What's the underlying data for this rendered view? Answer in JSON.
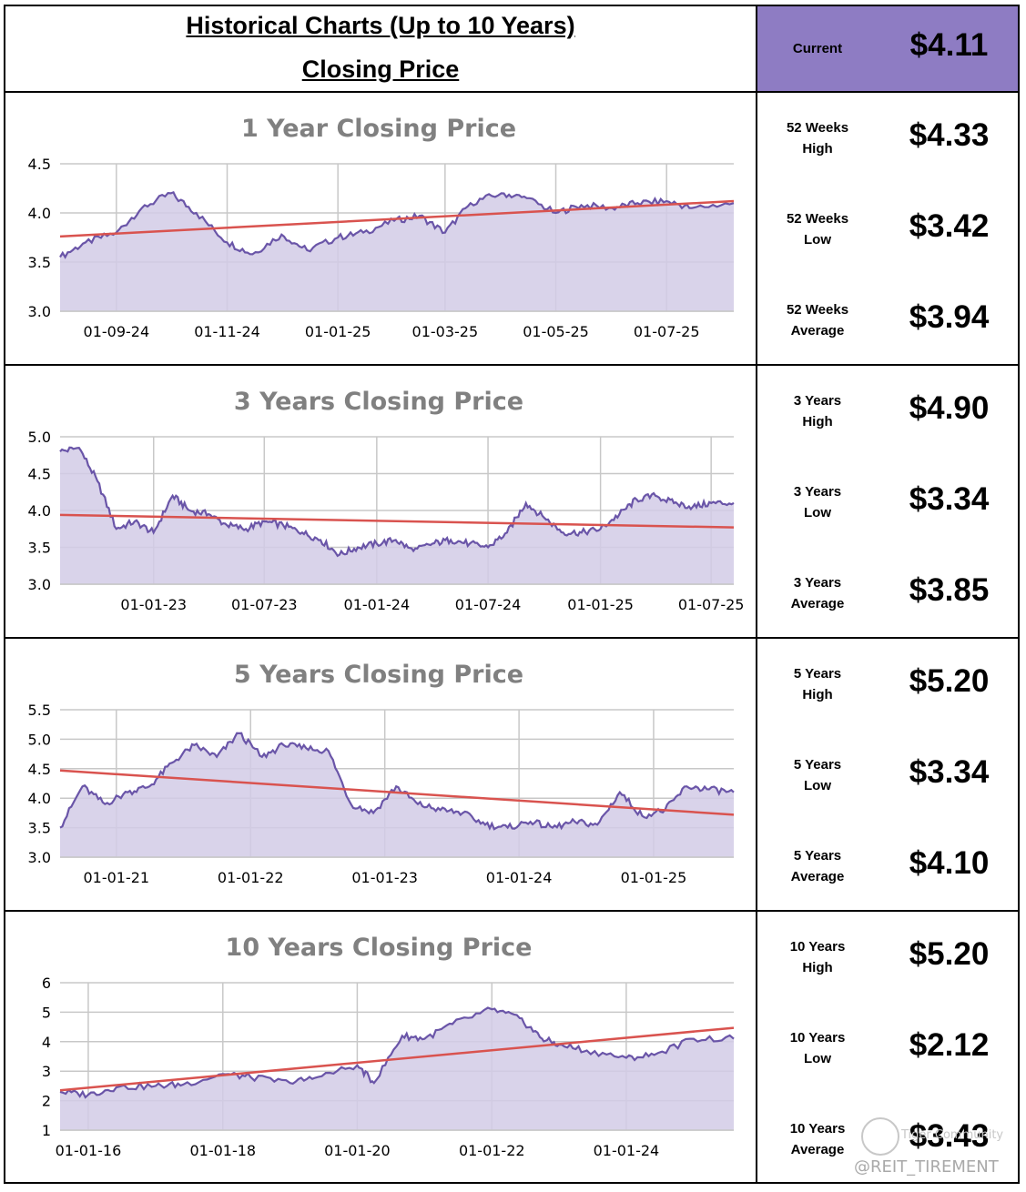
{
  "header": {
    "title_line1": "Historical Charts (Up to 10 Years)",
    "title_line2": "Closing Price",
    "current_label": "Current",
    "current_value": "$4.11",
    "current_bg": "#8e7cc3"
  },
  "stats": [
    {
      "label_line1": "52 Weeks",
      "label_line2": "High",
      "value": "$4.33"
    },
    {
      "label_line1": "52 Weeks",
      "label_line2": "Low",
      "value": "$3.42"
    },
    {
      "label_line1": "52 Weeks",
      "label_line2": "Average",
      "value": "$3.94"
    },
    {
      "label_line1": "3 Years",
      "label_line2": "High",
      "value": "$4.90"
    },
    {
      "label_line1": "3 Years",
      "label_line2": "Low",
      "value": "$3.34"
    },
    {
      "label_line1": "3 Years",
      "label_line2": "Average",
      "value": "$3.85"
    },
    {
      "label_line1": "5 Years",
      "label_line2": "High",
      "value": "$5.20"
    },
    {
      "label_line1": "5 Years",
      "label_line2": "Low",
      "value": "$3.34"
    },
    {
      "label_line1": "5 Years",
      "label_line2": "Average",
      "value": "$4.10"
    },
    {
      "label_line1": "10 Years",
      "label_line2": "High",
      "value": "$5.20"
    },
    {
      "label_line1": "10 Years",
      "label_line2": "Low",
      "value": "$2.12"
    },
    {
      "label_line1": "10 Years",
      "label_line2": "Average",
      "value": "$3.43"
    }
  ],
  "watermark": {
    "handle": "@REIT_TIREMENT",
    "community": "Tiger Community"
  },
  "colors": {
    "price_line": "#6a55a8",
    "fill": "#d2cbe6",
    "trend": "#d9534f",
    "grid": "#c8c8c8"
  },
  "chart_data": [
    {
      "type": "area",
      "title": "1 Year Closing Price",
      "x_range": [
        "2024-08-01",
        "2025-08-07"
      ],
      "xticks": [
        "01-09-24",
        "01-11-24",
        "01-01-25",
        "01-03-25",
        "01-05-25",
        "01-07-25"
      ],
      "xtick_dates": [
        "2024-09-01",
        "2024-11-01",
        "2025-01-01",
        "2025-03-01",
        "2025-05-01",
        "2025-07-01"
      ],
      "ylim": [
        3.0,
        4.5
      ],
      "yticks": [
        "3.0",
        "3.5",
        "4.0",
        "4.5"
      ],
      "series": [
        {
          "x": [
            "2024-08-01",
            "2024-08-15",
            "2024-09-01",
            "2024-09-15",
            "2024-10-01",
            "2024-10-15",
            "2024-11-01",
            "2024-11-15",
            "2024-12-01",
            "2024-12-15",
            "2025-01-01",
            "2025-01-15",
            "2025-02-01",
            "2025-02-15",
            "2025-03-01",
            "2025-03-15",
            "2025-04-01",
            "2025-04-15",
            "2025-05-01",
            "2025-05-15",
            "2025-06-01",
            "2025-06-15",
            "2025-07-01",
            "2025-07-15",
            "2025-08-07"
          ],
          "y": [
            3.55,
            3.7,
            3.8,
            4.05,
            4.2,
            4.0,
            3.7,
            3.58,
            3.78,
            3.62,
            3.75,
            3.8,
            3.92,
            3.97,
            3.8,
            4.1,
            4.2,
            4.15,
            4.0,
            4.08,
            4.05,
            4.1,
            4.12,
            4.05,
            4.1
          ]
        }
      ],
      "trend": {
        "y_start": 3.76,
        "y_end": 4.12
      }
    },
    {
      "type": "area",
      "title": "3 Years Closing Price",
      "x_range": [
        "2022-08-01",
        "2025-08-07"
      ],
      "xticks": [
        "01-01-23",
        "01-07-23",
        "01-01-24",
        "01-07-24",
        "01-01-25",
        "01-07-25"
      ],
      "xtick_dates": [
        "2023-01-01",
        "2023-07-01",
        "2024-01-01",
        "2024-07-01",
        "2025-01-01",
        "2025-07-01"
      ],
      "ylim": [
        3.0,
        5.0
      ],
      "yticks": [
        "3.0",
        "3.5",
        "4.0",
        "4.5",
        "5.0"
      ],
      "series": [
        {
          "x": [
            "2022-08-01",
            "2022-09-01",
            "2022-10-01",
            "2022-11-01",
            "2022-12-01",
            "2023-01-01",
            "2023-02-01",
            "2023-03-01",
            "2023-04-01",
            "2023-05-01",
            "2023-06-01",
            "2023-07-01",
            "2023-08-01",
            "2023-09-01",
            "2023-10-01",
            "2023-11-01",
            "2023-12-01",
            "2024-01-01",
            "2024-02-01",
            "2024-03-01",
            "2024-04-01",
            "2024-05-01",
            "2024-06-01",
            "2024-07-01",
            "2024-08-01",
            "2024-09-01",
            "2024-10-01",
            "2024-11-01",
            "2024-12-01",
            "2025-01-01",
            "2025-02-01",
            "2025-03-01",
            "2025-04-01",
            "2025-05-01",
            "2025-06-01",
            "2025-07-01",
            "2025-08-07"
          ],
          "y": [
            4.8,
            4.85,
            4.4,
            3.75,
            3.85,
            3.7,
            4.2,
            4.0,
            3.95,
            3.8,
            3.75,
            3.85,
            3.8,
            3.7,
            3.6,
            3.4,
            3.5,
            3.55,
            3.6,
            3.45,
            3.55,
            3.6,
            3.55,
            3.5,
            3.7,
            4.1,
            3.9,
            3.7,
            3.7,
            3.75,
            3.95,
            4.15,
            4.2,
            4.1,
            4.05,
            4.1,
            4.1
          ]
        }
      ],
      "trend": {
        "y_start": 3.94,
        "y_end": 3.77
      }
    },
    {
      "type": "area",
      "title": "5 Years Closing Price",
      "x_range": [
        "2020-08-01",
        "2025-08-07"
      ],
      "xticks": [
        "01-01-21",
        "01-01-22",
        "01-01-23",
        "01-01-24",
        "01-01-25"
      ],
      "xtick_dates": [
        "2021-01-01",
        "2022-01-01",
        "2023-01-01",
        "2024-01-01",
        "2025-01-01"
      ],
      "ylim": [
        3.0,
        5.5
      ],
      "yticks": [
        "3.0",
        "3.5",
        "4.0",
        "4.5",
        "5.0",
        "5.5"
      ],
      "series": [
        {
          "x": [
            "2020-08-01",
            "2020-10-01",
            "2020-12-01",
            "2021-02-01",
            "2021-04-01",
            "2021-06-01",
            "2021-08-01",
            "2021-10-01",
            "2021-12-01",
            "2022-02-01",
            "2022-04-01",
            "2022-06-01",
            "2022-08-01",
            "2022-10-01",
            "2022-12-01",
            "2023-02-01",
            "2023-04-01",
            "2023-06-01",
            "2023-08-01",
            "2023-10-01",
            "2023-12-01",
            "2024-02-01",
            "2024-04-01",
            "2024-06-01",
            "2024-08-01",
            "2024-10-01",
            "2024-12-01",
            "2025-02-01",
            "2025-04-01",
            "2025-06-01",
            "2025-08-07"
          ],
          "y": [
            3.5,
            4.2,
            3.9,
            4.1,
            4.2,
            4.6,
            4.9,
            4.7,
            5.1,
            4.7,
            4.9,
            4.85,
            4.8,
            3.9,
            3.75,
            4.2,
            3.9,
            3.8,
            3.75,
            3.55,
            3.5,
            3.6,
            3.5,
            3.6,
            3.55,
            4.1,
            3.7,
            3.8,
            4.2,
            4.15,
            4.1
          ]
        }
      ],
      "trend": {
        "y_start": 4.47,
        "y_end": 3.72
      }
    },
    {
      "type": "area",
      "title": "10 Years Closing Price",
      "x_range": [
        "2015-08-01",
        "2025-08-07"
      ],
      "xticks": [
        "01-01-16",
        "01-01-18",
        "01-01-20",
        "01-01-22",
        "01-01-24"
      ],
      "xtick_dates": [
        "2016-01-01",
        "2018-01-01",
        "2020-01-01",
        "2022-01-01",
        "2024-01-01"
      ],
      "ylim": [
        1,
        6
      ],
      "yticks": [
        "1",
        "2",
        "3",
        "4",
        "5",
        "6"
      ],
      "series": [
        {
          "x": [
            "2015-08-01",
            "2016-01-01",
            "2016-06-01",
            "2017-01-01",
            "2017-06-01",
            "2018-01-01",
            "2018-06-01",
            "2019-01-01",
            "2019-06-01",
            "2020-01-01",
            "2020-04-01",
            "2020-09-01",
            "2021-01-01",
            "2021-06-01",
            "2022-01-01",
            "2022-06-01",
            "2022-10-01",
            "2023-01-01",
            "2023-06-01",
            "2024-01-01",
            "2024-06-01",
            "2025-01-01",
            "2025-08-07"
          ],
          "y": [
            2.3,
            2.2,
            2.45,
            2.5,
            2.55,
            2.9,
            2.8,
            2.6,
            2.8,
            3.2,
            2.6,
            4.2,
            4.1,
            4.6,
            5.1,
            4.8,
            4.1,
            3.9,
            3.7,
            3.45,
            3.55,
            4.1,
            4.1
          ]
        }
      ],
      "trend": {
        "y_start": 2.35,
        "y_end": 4.47
      }
    }
  ]
}
